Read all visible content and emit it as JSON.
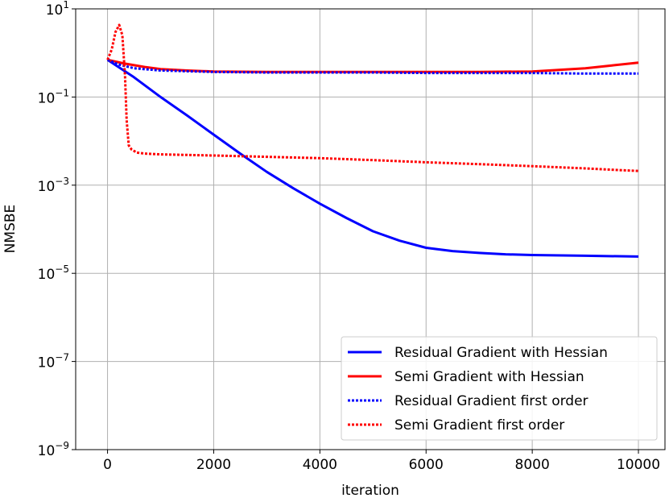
{
  "chart_data": {
    "type": "line",
    "title": "",
    "xlabel": "iteration",
    "ylabel": "NMSBE",
    "xlim": [
      -600,
      10500
    ],
    "ylim": [
      1e-09,
      10
    ],
    "yscale": "log",
    "grid": true,
    "legend_position": "bottom-right",
    "x_ticks": [
      0,
      2000,
      4000,
      6000,
      8000,
      10000
    ],
    "x_tick_labels": [
      "0",
      "2000",
      "4000",
      "6000",
      "8000",
      "10000"
    ],
    "y_ticks": [
      1e-09,
      1e-07,
      1e-05,
      0.001,
      0.1,
      10
    ],
    "y_tick_labels": [
      {
        "base": "10",
        "exp": "−9"
      },
      {
        "base": "10",
        "exp": "−7"
      },
      {
        "base": "10",
        "exp": "−5"
      },
      {
        "base": "10",
        "exp": "−3"
      },
      {
        "base": "10",
        "exp": "−1"
      },
      {
        "base": "10",
        "exp": "1"
      }
    ],
    "series": [
      {
        "name": "Residual Gradient with Hessian",
        "color": "#0000ff",
        "style": "solid",
        "x": [
          0,
          500,
          1000,
          1500,
          2000,
          2500,
          3000,
          3500,
          4000,
          4500,
          5000,
          5500,
          6000,
          6500,
          7000,
          7500,
          8000,
          9000,
          10000
        ],
        "y": [
          0.7,
          0.28,
          0.1,
          0.038,
          0.014,
          0.0052,
          0.002,
          0.00085,
          0.00038,
          0.00018,
          9e-05,
          5.5e-05,
          3.8e-05,
          3.2e-05,
          2.9e-05,
          2.7e-05,
          2.6e-05,
          2.5e-05,
          2.4e-05
        ]
      },
      {
        "name": "Semi Gradient with Hessian",
        "color": "#ff0000",
        "style": "solid",
        "x": [
          0,
          300,
          700,
          1000,
          1500,
          2000,
          3000,
          4000,
          5000,
          6000,
          7000,
          8000,
          9000,
          9500,
          10000
        ],
        "y": [
          0.7,
          0.58,
          0.48,
          0.43,
          0.4,
          0.38,
          0.37,
          0.37,
          0.37,
          0.37,
          0.37,
          0.38,
          0.45,
          0.52,
          0.6
        ]
      },
      {
        "name": "Residual Gradient first order",
        "color": "#0000ff",
        "style": "dotted",
        "x": [
          0,
          200,
          500,
          1000,
          2000,
          3000,
          4000,
          5000,
          6000,
          7000,
          8000,
          9000,
          10000
        ],
        "y": [
          0.7,
          0.55,
          0.45,
          0.4,
          0.37,
          0.36,
          0.36,
          0.36,
          0.35,
          0.35,
          0.35,
          0.34,
          0.34
        ]
      },
      {
        "name": "Semi Gradient first order",
        "color": "#ff0000",
        "style": "dotted",
        "x": [
          0,
          80,
          150,
          220,
          280,
          330,
          360,
          400,
          450,
          550,
          700,
          1000,
          2000,
          3000,
          4000,
          5000,
          6000,
          7000,
          8000,
          9000,
          10000
        ],
        "y": [
          0.7,
          1.2,
          3.0,
          4.3,
          2.5,
          0.3,
          0.03,
          0.008,
          0.0065,
          0.0055,
          0.0052,
          0.005,
          0.0047,
          0.0044,
          0.0041,
          0.0037,
          0.0033,
          0.003,
          0.0027,
          0.0024,
          0.0021
        ]
      }
    ]
  }
}
